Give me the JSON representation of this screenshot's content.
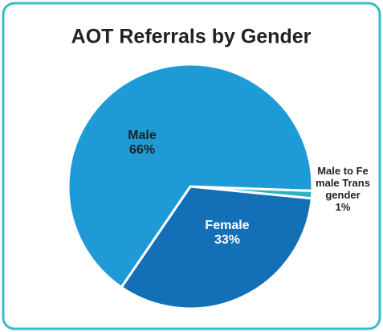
{
  "chart_data": {
    "type": "pie",
    "title": "AOT Referrals by Gender",
    "categories": [
      "Transgender_placeholder"
    ],
    "values": [
      1
    ]
  }
}
